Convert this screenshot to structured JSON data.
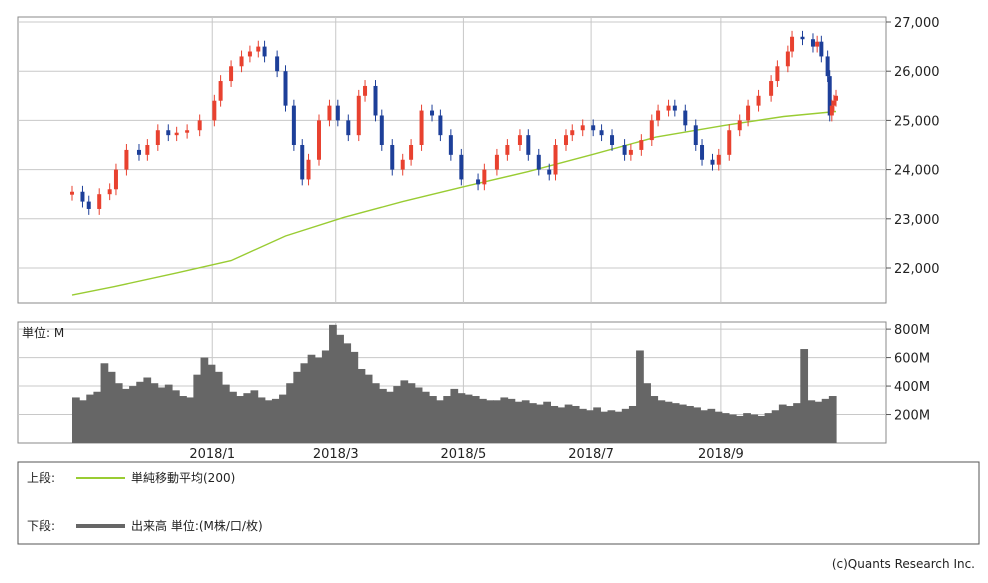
{
  "chart_data": [
    {
      "type": "candlestick",
      "panel": "price",
      "y_ticks": [
        "27,000",
        "26,000",
        "25,000",
        "24,000",
        "23,000",
        "22,000"
      ],
      "ylim": [
        21400,
        27000
      ],
      "x_ticks": [
        "2018/1",
        "2018/3",
        "2018/5",
        "2018/7",
        "2018/9"
      ],
      "x_range": [
        "2017-10-26",
        "2018-10-26"
      ],
      "series": [
        {
          "name": "単純移動平均(200)",
          "type": "line",
          "color": "#99cc33",
          "points": [
            [
              "2017-10-26",
              21450
            ],
            [
              "2017-11-15",
              21620
            ],
            [
              "2017-12-15",
              21900
            ],
            [
              "2018-01-10",
              22150
            ],
            [
              "2018-02-05",
              22650
            ],
            [
              "2018-03-05",
              23030
            ],
            [
              "2018-04-02",
              23350
            ],
            [
              "2018-05-01",
              23650
            ],
            [
              "2018-06-01",
              23960
            ],
            [
              "2018-07-02",
              24310
            ],
            [
              "2018-08-01",
              24660
            ],
            [
              "2018-09-03",
              24900
            ],
            [
              "2018-10-01",
              25080
            ],
            [
              "2018-10-26",
              25180
            ]
          ]
        },
        {
          "name": "price",
          "type": "ohlc-close",
          "up_color": "#e8412f",
          "down_color": "#1d3f99",
          "points": [
            [
              "2017-10-26",
              23550
            ],
            [
              "2017-10-31",
              23350
            ],
            [
              "2017-11-03",
              23200
            ],
            [
              "2017-11-08",
              23500
            ],
            [
              "2017-11-13",
              23600
            ],
            [
              "2017-11-16",
              24000
            ],
            [
              "2017-11-21",
              24400
            ],
            [
              "2017-11-27",
              24300
            ],
            [
              "2017-12-01",
              24500
            ],
            [
              "2017-12-06",
              24800
            ],
            [
              "2017-12-11",
              24700
            ],
            [
              "2017-12-15",
              24750
            ],
            [
              "2017-12-20",
              24800
            ],
            [
              "2017-12-26",
              25000
            ],
            [
              "2018-01-02",
              25400
            ],
            [
              "2018-01-05",
              25800
            ],
            [
              "2018-01-10",
              26100
            ],
            [
              "2018-01-15",
              26300
            ],
            [
              "2018-01-19",
              26400
            ],
            [
              "2018-01-23",
              26500
            ],
            [
              "2018-01-26",
              26300
            ],
            [
              "2018-02-01",
              26000
            ],
            [
              "2018-02-05",
              25300
            ],
            [
              "2018-02-09",
              24500
            ],
            [
              "2018-02-13",
              23800
            ],
            [
              "2018-02-16",
              24200
            ],
            [
              "2018-02-21",
              25000
            ],
            [
              "2018-02-26",
              25300
            ],
            [
              "2018-03-02",
              25000
            ],
            [
              "2018-03-07",
              24700
            ],
            [
              "2018-03-12",
              25500
            ],
            [
              "2018-03-15",
              25700
            ],
            [
              "2018-03-20",
              25100
            ],
            [
              "2018-03-23",
              24500
            ],
            [
              "2018-03-28",
              24000
            ],
            [
              "2018-04-02",
              24200
            ],
            [
              "2018-04-06",
              24500
            ],
            [
              "2018-04-11",
              25200
            ],
            [
              "2018-04-16",
              25100
            ],
            [
              "2018-04-20",
              24700
            ],
            [
              "2018-04-25",
              24300
            ],
            [
              "2018-04-30",
              23800
            ],
            [
              "2018-05-08",
              23700
            ],
            [
              "2018-05-11",
              24000
            ],
            [
              "2018-05-17",
              24300
            ],
            [
              "2018-05-22",
              24500
            ],
            [
              "2018-05-28",
              24700
            ],
            [
              "2018-06-01",
              24300
            ],
            [
              "2018-06-06",
              24000
            ],
            [
              "2018-06-11",
              23900
            ],
            [
              "2018-06-14",
              24500
            ],
            [
              "2018-06-19",
              24700
            ],
            [
              "2018-06-22",
              24800
            ],
            [
              "2018-06-27",
              24900
            ],
            [
              "2018-07-02",
              24800
            ],
            [
              "2018-07-06",
              24700
            ],
            [
              "2018-07-11",
              24500
            ],
            [
              "2018-07-17",
              24300
            ],
            [
              "2018-07-20",
              24400
            ],
            [
              "2018-07-25",
              24600
            ],
            [
              "2018-07-30",
              25000
            ],
            [
              "2018-08-02",
              25200
            ],
            [
              "2018-08-07",
              25300
            ],
            [
              "2018-08-10",
              25200
            ],
            [
              "2018-08-15",
              24900
            ],
            [
              "2018-08-20",
              24500
            ],
            [
              "2018-08-23",
              24200
            ],
            [
              "2018-08-28",
              24100
            ],
            [
              "2018-08-31",
              24300
            ],
            [
              "2018-09-05",
              24800
            ],
            [
              "2018-09-10",
              25000
            ],
            [
              "2018-09-14",
              25300
            ],
            [
              "2018-09-19",
              25500
            ],
            [
              "2018-09-25",
              25800
            ],
            [
              "2018-09-28",
              26100
            ],
            [
              "2018-10-03",
              26400
            ],
            [
              "2018-10-05",
              26700
            ],
            [
              "2018-10-10",
              26650
            ],
            [
              "2018-10-15",
              26500
            ],
            [
              "2018-10-17",
              26600
            ],
            [
              "2018-10-19",
              26300
            ],
            [
              "2018-10-22",
              25900
            ],
            [
              "2018-10-23",
              25100
            ],
            [
              "2018-10-24",
              25300
            ],
            [
              "2018-10-25",
              25400
            ],
            [
              "2018-10-26",
              25500
            ]
          ]
        }
      ]
    },
    {
      "type": "bar",
      "panel": "volume",
      "unit_label": "単位: M",
      "y_ticks": [
        "800M",
        "600M",
        "400M",
        "200M"
      ],
      "ylim": [
        0,
        850
      ],
      "x_range": [
        "2017-10-26",
        "2018-10-26"
      ],
      "color": "#666666",
      "series": [
        {
          "name": "出来高",
          "values": [
            320,
            300,
            340,
            360,
            560,
            500,
            420,
            380,
            400,
            430,
            460,
            420,
            390,
            410,
            370,
            330,
            320,
            480,
            600,
            550,
            500,
            410,
            360,
            330,
            350,
            370,
            320,
            300,
            310,
            340,
            420,
            500,
            560,
            620,
            600,
            650,
            830,
            760,
            700,
            640,
            520,
            480,
            420,
            380,
            360,
            400,
            440,
            420,
            390,
            360,
            330,
            300,
            330,
            380,
            350,
            340,
            330,
            310,
            300,
            300,
            320,
            310,
            290,
            300,
            280,
            270,
            290,
            260,
            250,
            270,
            260,
            240,
            230,
            250,
            220,
            230,
            220,
            240,
            260,
            650,
            420,
            330,
            300,
            290,
            280,
            270,
            260,
            250,
            230,
            240,
            220,
            210,
            200,
            190,
            210,
            200,
            190,
            210,
            230,
            270,
            260,
            280,
            660,
            300,
            290,
            310,
            330
          ]
        }
      ]
    }
  ],
  "legend": {
    "upper_label": "上段:",
    "upper_item": "単純移動平均(200)",
    "lower_label": "下段:",
    "lower_item": "出来高 単位:(M株/口/枚)"
  },
  "credit": "(c)Quants Research Inc."
}
